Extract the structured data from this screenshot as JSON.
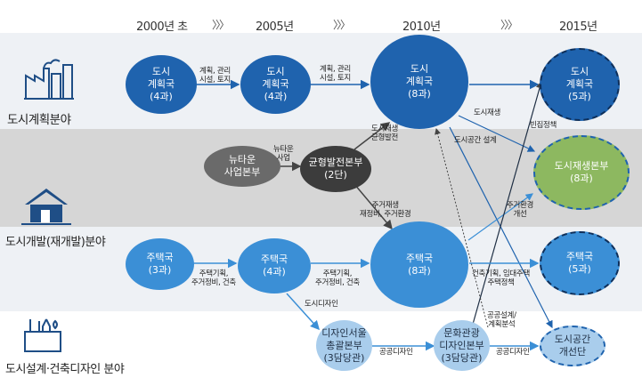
{
  "header": {
    "years": [
      "2000년 초",
      "2005년",
      "2010년",
      "2015년"
    ],
    "separator": "〉〉〉"
  },
  "fields": {
    "planning": "도시계획분야",
    "development": "도시개발(재개발)분야",
    "design": "도시설계·건축디자인 분야"
  },
  "nodes": {
    "plan2000": [
      "도시",
      "계획국",
      "(4과)"
    ],
    "plan2005": [
      "도시",
      "계획국",
      "(4과)"
    ],
    "plan2010": [
      "도시",
      "계획국",
      "(8과)"
    ],
    "plan2015": [
      "도시",
      "계획국",
      "(5과)"
    ],
    "newtown": [
      "뉴타운",
      "사업본부"
    ],
    "balanced": [
      "균형발전본부",
      "(2단)"
    ],
    "regen2015": [
      "도시재생본부",
      "(8과)"
    ],
    "housing2000": [
      "주택국",
      "(3과)"
    ],
    "housing2005": [
      "주택국",
      "(4과)"
    ],
    "housing2010": [
      "주택국",
      "(8과)"
    ],
    "housing2015": [
      "주택국",
      "(5과)"
    ],
    "design_hq": [
      "디자인서울",
      "총괄본부",
      "(3담당관)"
    ],
    "culture_hq": [
      "문화관광",
      "디자인본부",
      "(3담당관)"
    ],
    "urban_space": [
      "도시공간",
      "개선단"
    ]
  },
  "labels": {
    "plan_a": [
      "계획, 관리",
      "시설, 토지"
    ],
    "plan_b": [
      "계획, 관리",
      "시설, 토지"
    ],
    "newtown_biz": [
      "뉴타운",
      "사업"
    ],
    "regen_balance": [
      "도시재생",
      "균형발전"
    ],
    "housing_regen": [
      "주거재생",
      "재정비, 주거환경"
    ],
    "regen_to_2015": "도시재생",
    "urban_space_design": "도시공간 설계",
    "vacant_policy": "빈집정책",
    "housing_env": [
      "주거환경",
      "개선"
    ],
    "housing_a": [
      "주택기획,",
      "주거정비, 건축"
    ],
    "housing_b": [
      "주택기획,",
      "주거정비, 건축"
    ],
    "construction": [
      "건축기획, 임대주택",
      "주택정책"
    ],
    "city_design": "도시디자인",
    "public_design_a": "공공디자인",
    "public_design_b": "공공디자인",
    "public_plan": [
      "공공설계/",
      "계획분석"
    ]
  },
  "icons": [
    "factory-city-icon",
    "house-icon",
    "design-tools-icon"
  ],
  "colors": {
    "dark_blue": "#1f63ae",
    "mid_blue": "#3b8fd6",
    "pale_blue": "#a9cdec",
    "green": "#8db860",
    "gray_band": "#d6d6d6",
    "light_band": "#eef1f5"
  }
}
